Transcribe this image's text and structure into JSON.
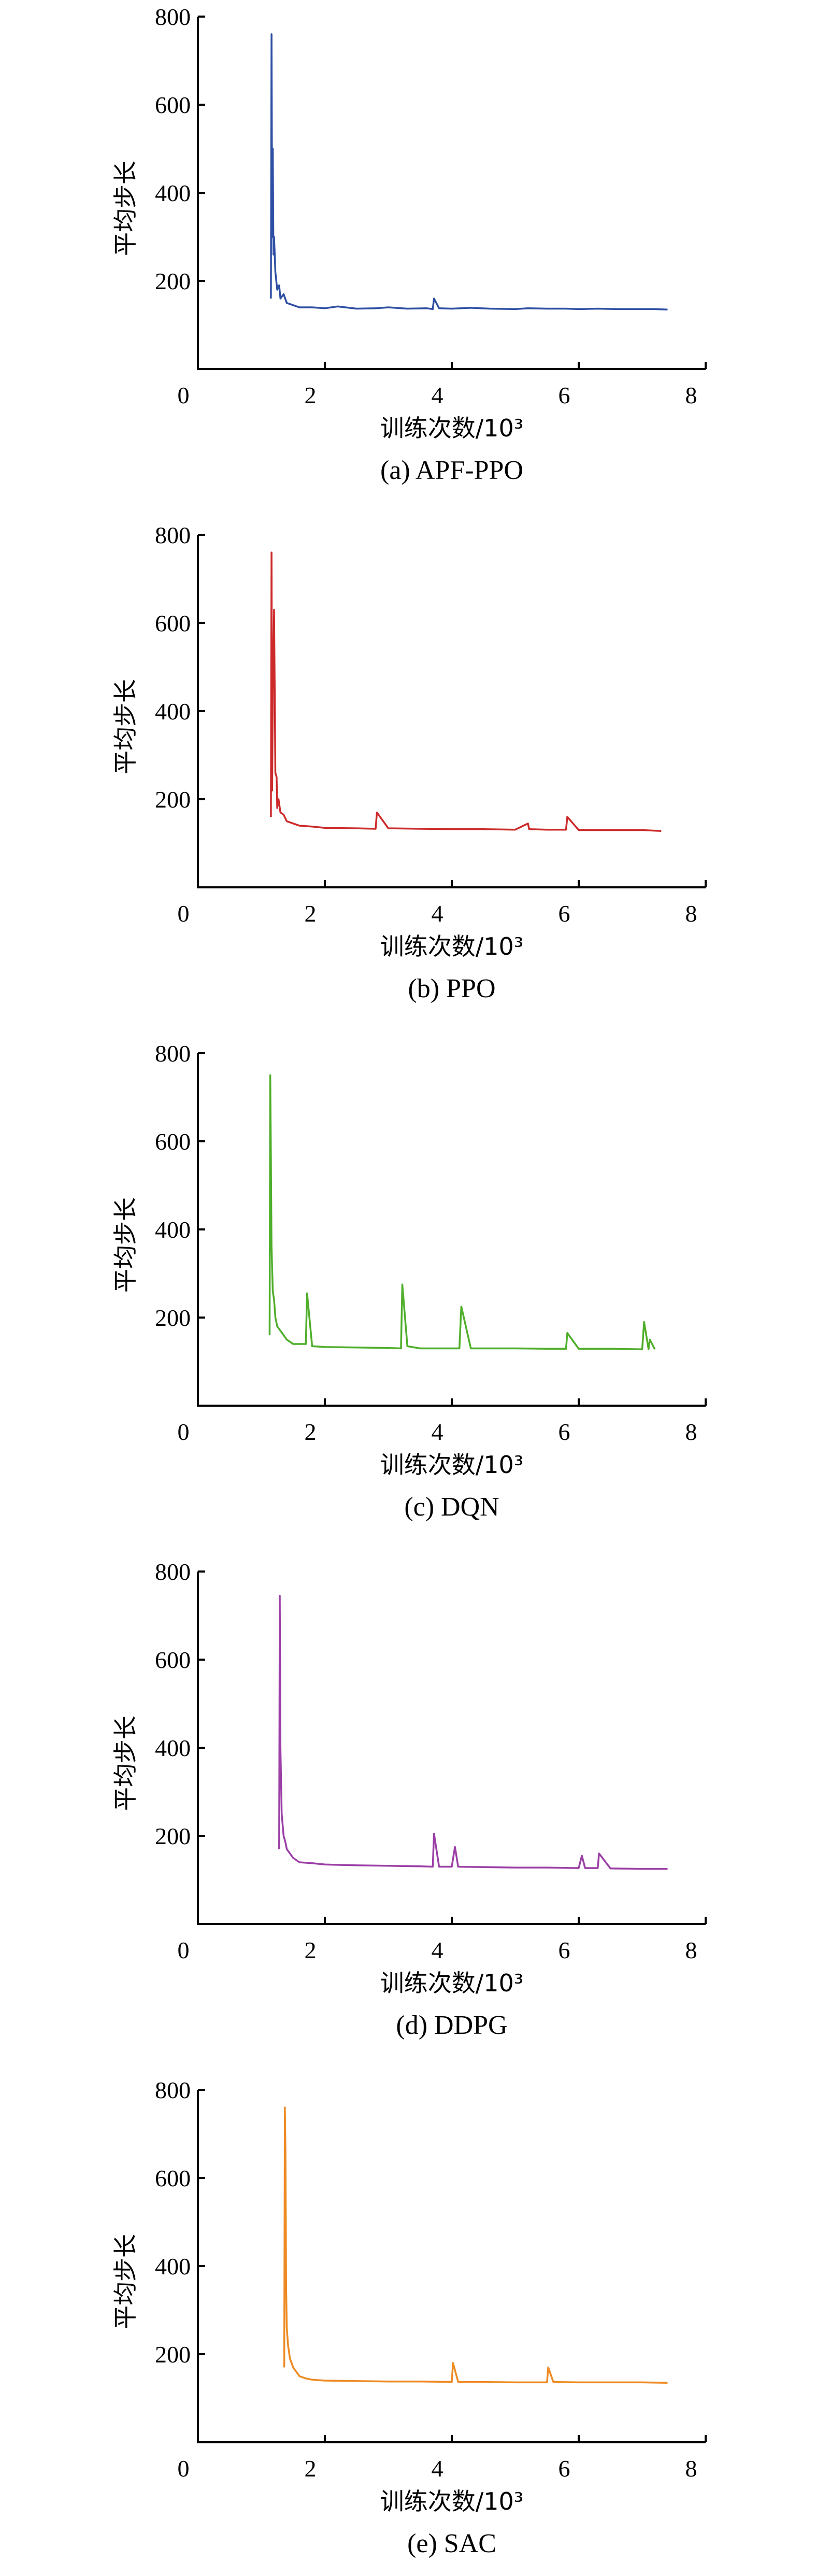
{
  "chart_data": [
    {
      "type": "line",
      "caption": "(a) APF-PPO",
      "xlabel": "训练次数/10³",
      "ylabel": "平均步长",
      "xlim": [
        0,
        8
      ],
      "ylim": [
        0,
        800
      ],
      "x_ticks": [
        "0",
        "2",
        "4",
        "6",
        "8"
      ],
      "y_ticks": [
        "200",
        "400",
        "600",
        "800"
      ],
      "color": "#2e4fa3",
      "series": [
        {
          "x": [
            1.15,
            1.16,
            1.17,
            1.18,
            1.19,
            1.2,
            1.22,
            1.25,
            1.28,
            1.3,
            1.35,
            1.4,
            1.5,
            1.6,
            1.8,
            2.0,
            2.2,
            2.5,
            2.8,
            3.0,
            3.3,
            3.6,
            3.7,
            3.72,
            3.8,
            4.0,
            4.3,
            4.6,
            5.0,
            5.2,
            5.5,
            5.8,
            6.0,
            6.3,
            6.6,
            7.0,
            7.2,
            7.4
          ],
          "y": [
            160,
            760,
            300,
            500,
            260,
            300,
            220,
            180,
            190,
            160,
            170,
            150,
            145,
            140,
            140,
            138,
            142,
            137,
            138,
            140,
            137,
            138,
            136,
            160,
            138,
            137,
            139,
            137,
            136,
            138,
            137,
            137,
            136,
            137,
            136,
            136,
            136,
            135
          ]
        }
      ]
    },
    {
      "type": "line",
      "caption": "(b) PPO",
      "xlabel": "训练次数/10³",
      "ylabel": "平均步长",
      "xlim": [
        0,
        8
      ],
      "ylim": [
        0,
        800
      ],
      "x_ticks": [
        "0",
        "2",
        "4",
        "6",
        "8"
      ],
      "y_ticks": [
        "200",
        "400",
        "600",
        "800"
      ],
      "color": "#cc2a2a",
      "series": [
        {
          "x": [
            1.15,
            1.16,
            1.17,
            1.18,
            1.2,
            1.22,
            1.24,
            1.25,
            1.27,
            1.3,
            1.35,
            1.4,
            1.5,
            1.6,
            1.8,
            2.0,
            2.5,
            2.8,
            2.82,
            3.0,
            3.5,
            4.0,
            4.5,
            5.0,
            5.2,
            5.22,
            5.5,
            5.8,
            5.82,
            6.0,
            6.5,
            7.0,
            7.3
          ],
          "y": [
            160,
            760,
            220,
            440,
            630,
            260,
            250,
            180,
            200,
            170,
            165,
            150,
            145,
            140,
            138,
            135,
            134,
            133,
            170,
            134,
            133,
            132,
            132,
            131,
            145,
            132,
            131,
            131,
            160,
            130,
            130,
            130,
            128
          ]
        }
      ]
    },
    {
      "type": "line",
      "caption": "(c) DQN",
      "xlabel": "训练次数/10³",
      "ylabel": "平均步长",
      "xlim": [
        0,
        8
      ],
      "ylim": [
        0,
        800
      ],
      "x_ticks": [
        "0",
        "2",
        "4",
        "6",
        "8"
      ],
      "y_ticks": [
        "200",
        "400",
        "600",
        "800"
      ],
      "color": "#4fae2b",
      "series": [
        {
          "x": [
            1.13,
            1.14,
            1.15,
            1.16,
            1.18,
            1.2,
            1.22,
            1.25,
            1.3,
            1.4,
            1.5,
            1.7,
            1.72,
            1.8,
            2.0,
            2.5,
            3.0,
            3.2,
            3.22,
            3.3,
            3.5,
            4.0,
            4.12,
            4.15,
            4.3,
            5.0,
            5.5,
            5.8,
            5.82,
            6.0,
            6.5,
            7.0,
            7.03,
            7.1,
            7.12,
            7.2
          ],
          "y": [
            160,
            750,
            560,
            360,
            260,
            240,
            200,
            180,
            170,
            150,
            140,
            140,
            255,
            135,
            133,
            132,
            131,
            130,
            275,
            135,
            130,
            130,
            130,
            225,
            130,
            130,
            129,
            129,
            165,
            129,
            129,
            128,
            190,
            128,
            150,
            128
          ]
        }
      ]
    },
    {
      "type": "line",
      "caption": "(d) DDPG",
      "xlabel": "训练次数/10³",
      "ylabel": "平均步长",
      "xlim": [
        0,
        8
      ],
      "ylim": [
        0,
        800
      ],
      "x_ticks": [
        "0",
        "2",
        "4",
        "6",
        "8"
      ],
      "y_ticks": [
        "200",
        "400",
        "600",
        "800"
      ],
      "color": "#9b3fa6",
      "series": [
        {
          "x": [
            1.28,
            1.29,
            1.3,
            1.32,
            1.35,
            1.38,
            1.4,
            1.45,
            1.5,
            1.6,
            1.8,
            2.0,
            2.5,
            3.0,
            3.5,
            3.7,
            3.72,
            3.8,
            4.0,
            4.05,
            4.1,
            4.5,
            5.0,
            5.5,
            6.0,
            6.05,
            6.1,
            6.3,
            6.32,
            6.5,
            7.0,
            7.4
          ],
          "y": [
            170,
            745,
            400,
            250,
            200,
            185,
            170,
            160,
            150,
            140,
            138,
            135,
            133,
            132,
            131,
            130,
            205,
            130,
            130,
            175,
            130,
            129,
            128,
            128,
            127,
            155,
            127,
            127,
            160,
            126,
            125,
            125
          ]
        }
      ]
    },
    {
      "type": "line",
      "caption": "(e) SAC",
      "xlabel": "训练次数/10³",
      "ylabel": "平均步长",
      "xlim": [
        0,
        8
      ],
      "ylim": [
        0,
        800
      ],
      "x_ticks": [
        "0",
        "2",
        "4",
        "6",
        "8"
      ],
      "y_ticks": [
        "200",
        "400",
        "600",
        "800"
      ],
      "color": "#ee8a23",
      "series": [
        {
          "x": [
            1.36,
            1.37,
            1.38,
            1.39,
            1.4,
            1.42,
            1.45,
            1.5,
            1.55,
            1.6,
            1.7,
            1.8,
            2.0,
            2.5,
            3.0,
            3.5,
            4.0,
            4.02,
            4.1,
            4.5,
            5.0,
            5.5,
            5.52,
            5.6,
            6.0,
            6.5,
            7.0,
            7.4
          ],
          "y": [
            170,
            760,
            660,
            350,
            260,
            220,
            190,
            170,
            160,
            150,
            145,
            142,
            140,
            139,
            138,
            138,
            137,
            180,
            137,
            137,
            136,
            136,
            170,
            137,
            136,
            136,
            136,
            135
          ]
        }
      ]
    }
  ]
}
